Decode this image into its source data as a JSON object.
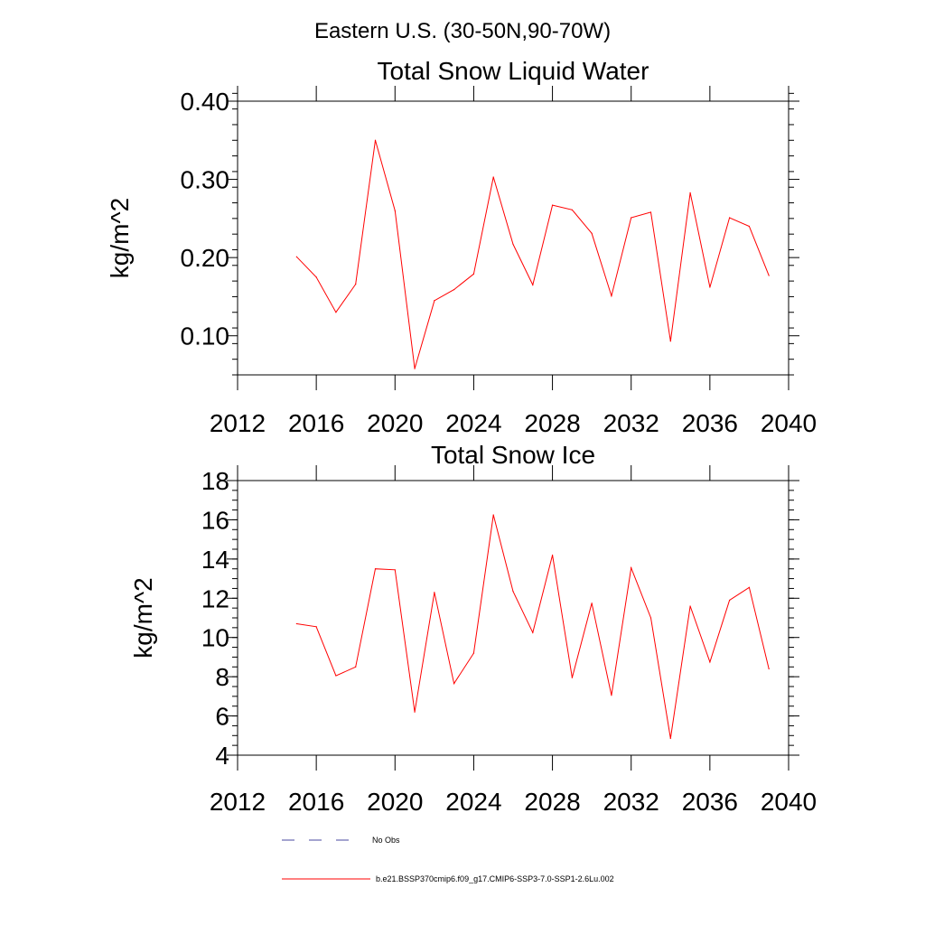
{
  "suptitle": "Eastern U.S. (30-50N,90-70W)",
  "legend": [
    {
      "label": "No Obs",
      "color": "#4a4aa0",
      "dash": true
    },
    {
      "label": "b.e21.BSSP370cmip6.f09_g17.CMIP6-SSP3-7.0-SSP1-2.6Lu.002",
      "color": "#ff0000",
      "dash": false
    }
  ],
  "chart_data": [
    {
      "type": "line",
      "title": "Total Snow Liquid Water",
      "ylabel": "kg/m^2",
      "xlabel": "",
      "xlim": [
        2012,
        2040
      ],
      "ylim": [
        0.05,
        0.4
      ],
      "x_ticks": [
        2012,
        2016,
        2020,
        2024,
        2028,
        2032,
        2036,
        2040
      ],
      "x_tick_labels": [
        "2012",
        "2016",
        "2020",
        "2024",
        "2028",
        "2032",
        "2036",
        "2040"
      ],
      "y_ticks": [
        0.1,
        0.2,
        0.3,
        0.4
      ],
      "y_tick_labels": [
        "0.10",
        "0.20",
        "0.30",
        "0.40"
      ],
      "y_minor_step": 0.02,
      "x_minor_step": 1,
      "grid": false,
      "series": [
        {
          "color": "#ff0000",
          "x": [
            2015,
            2016,
            2017,
            2018,
            2019,
            2020,
            2021,
            2022,
            2023,
            2024,
            2025,
            2026,
            2027,
            2028,
            2029,
            2030,
            2031,
            2032,
            2033,
            2034,
            2035,
            2036,
            2037,
            2038,
            2039
          ],
          "y": [
            0.201,
            0.175,
            0.13,
            0.166,
            0.35,
            0.26,
            0.058,
            0.145,
            0.159,
            0.179,
            0.303,
            0.217,
            0.165,
            0.267,
            0.261,
            0.231,
            0.151,
            0.251,
            0.258,
            0.093,
            0.283,
            0.162,
            0.251,
            0.24,
            0.177
          ]
        }
      ]
    },
    {
      "type": "line",
      "title": "Total Snow Ice",
      "ylabel": "kg/m^2",
      "xlabel": "",
      "xlim": [
        2012,
        2040
      ],
      "ylim": [
        4,
        18
      ],
      "x_ticks": [
        2012,
        2016,
        2020,
        2024,
        2028,
        2032,
        2036,
        2040
      ],
      "x_tick_labels": [
        "2012",
        "2016",
        "2020",
        "2024",
        "2028",
        "2032",
        "2036",
        "2040"
      ],
      "y_ticks": [
        4,
        6,
        8,
        10,
        12,
        14,
        16,
        18
      ],
      "y_tick_labels": [
        "4",
        "6",
        "8",
        "10",
        "12",
        "14",
        "16",
        "18"
      ],
      "y_minor_step": 0.5,
      "x_minor_step": 1,
      "grid": false,
      "series": [
        {
          "color": "#ff0000",
          "x": [
            2015,
            2016,
            2017,
            2018,
            2019,
            2020,
            2021,
            2022,
            2023,
            2024,
            2025,
            2026,
            2027,
            2028,
            2029,
            2030,
            2031,
            2032,
            2033,
            2034,
            2035,
            2036,
            2037,
            2038,
            2039
          ],
          "y": [
            10.7,
            10.55,
            8.05,
            8.5,
            13.5,
            13.45,
            6.2,
            12.3,
            7.65,
            9.2,
            16.25,
            12.35,
            10.25,
            14.2,
            7.95,
            11.75,
            7.05,
            13.55,
            11.0,
            4.85,
            11.6,
            8.75,
            11.9,
            12.55,
            8.4
          ]
        }
      ]
    }
  ]
}
